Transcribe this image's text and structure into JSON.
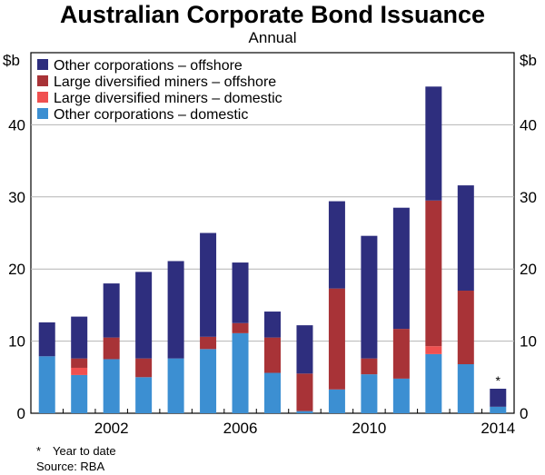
{
  "title": "Australian Corporate Bond Issuance",
  "subtitle": "Annual",
  "footnote": {
    "marker": "*",
    "text": "Year to date"
  },
  "source": "Source: RBA",
  "colors": {
    "other_offshore": "#2e2e7e",
    "miners_offshore": "#a83337",
    "miners_domestic": "#f05050",
    "other_domestic": "#3c8fd2"
  },
  "chart_data": {
    "type": "bar",
    "stacked": true,
    "ylabel_left": "$b",
    "ylabel_right": "$b",
    "ylim": [
      0,
      50
    ],
    "yticks": [
      0,
      10,
      20,
      30,
      40
    ],
    "x": [
      2000,
      2001,
      2002,
      2003,
      2004,
      2005,
      2006,
      2007,
      2008,
      2009,
      2010,
      2011,
      2012,
      2013,
      2014
    ],
    "xticks": [
      "2002",
      "2006",
      "2010",
      "2014"
    ],
    "xtick_years": [
      2002,
      2006,
      2010,
      2014
    ],
    "annotation": {
      "year": 2014,
      "text": "*"
    },
    "legend_position": "top-left",
    "grid": true,
    "series": [
      {
        "name": "Other corporations – domestic",
        "color": "#3c8fd2",
        "values": [
          7.9,
          5.3,
          7.5,
          5.0,
          7.6,
          8.9,
          11.1,
          5.6,
          0.3,
          3.3,
          5.4,
          4.8,
          8.2,
          6.8,
          0.9
        ]
      },
      {
        "name": "Large diversified miners – domestic",
        "color": "#f05050",
        "values": [
          0,
          1.0,
          0,
          0,
          0,
          0,
          0,
          0,
          0,
          0,
          0,
          0,
          1.1,
          0,
          0
        ]
      },
      {
        "name": "Large diversified miners – offshore",
        "color": "#a83337",
        "values": [
          0,
          1.3,
          3.0,
          2.6,
          0,
          1.7,
          1.4,
          4.9,
          5.2,
          14.0,
          2.2,
          6.9,
          20.2,
          10.2,
          0
        ]
      },
      {
        "name": "Other corporations – offshore",
        "color": "#2e2e7e",
        "values": [
          4.7,
          5.8,
          7.5,
          12.0,
          13.5,
          14.4,
          8.4,
          3.6,
          6.7,
          12.1,
          17.0,
          16.8,
          15.8,
          14.6,
          2.5
        ]
      }
    ],
    "legend_order": [
      3,
      2,
      1,
      0
    ]
  }
}
